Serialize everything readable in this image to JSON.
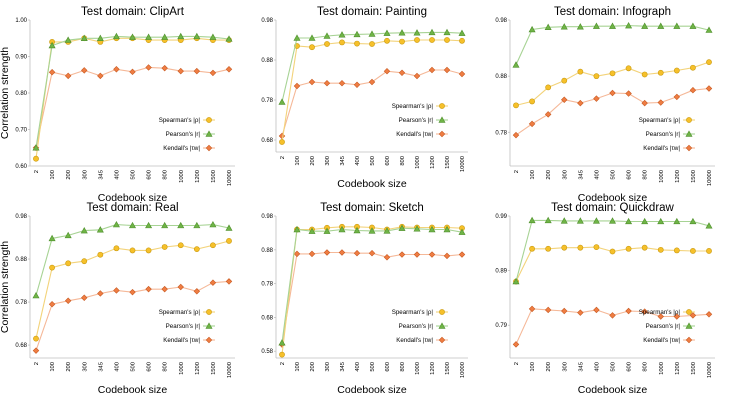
{
  "figure": {
    "shared_ylabel": "Correlation strength",
    "shared_xlabel": "Codebook size"
  },
  "colors": {
    "spearman_line": "#f3d37a",
    "spearman_marker_fill": "#f6c02a",
    "spearman_marker_edge": "#c99a10",
    "pearson_line": "#a7d394",
    "pearson_marker_fill": "#6fb446",
    "pearson_marker_edge": "#4f8f2c",
    "kendall_line": "#f5b898",
    "kendall_marker_fill": "#ef7d43",
    "kendall_marker_edge": "#c85a22",
    "axis": "#bfbfbf",
    "text": "#000000"
  },
  "chart_data": [
    {
      "type": "line",
      "title": "Test domain: ClipArt",
      "xlabel": "Codebook size",
      "ylabel": "Correlation strength",
      "categories": [
        "2",
        "100",
        "200",
        "300",
        "345",
        "400",
        "500",
        "600",
        "800",
        "1000",
        "1200",
        "1500",
        "10000"
      ],
      "yticks": [
        "0.60",
        "0.70",
        "0.80",
        "0.90",
        "1.00"
      ],
      "ylim": [
        0.6,
        1.0
      ],
      "legend_position": "bottom-right",
      "series": [
        {
          "name": "Spearman's |ρ|",
          "key": "spearman",
          "values": [
            0.62,
            0.94,
            0.94,
            0.95,
            0.94,
            0.95,
            0.95,
            0.945,
            0.945,
            0.945,
            0.95,
            0.945,
            0.945
          ]
        },
        {
          "name": "Pearson's |r|",
          "key": "pearson",
          "values": [
            0.65,
            0.93,
            0.945,
            0.95,
            0.95,
            0.955,
            0.953,
            0.953,
            0.953,
            0.955,
            0.955,
            0.953,
            0.948
          ]
        },
        {
          "name": "Kendall's |τw|",
          "key": "kendall",
          "values": [
            0.65,
            0.857,
            0.847,
            0.862,
            0.847,
            0.865,
            0.858,
            0.87,
            0.868,
            0.86,
            0.86,
            0.855,
            0.865
          ]
        }
      ]
    },
    {
      "type": "line",
      "title": "Test domain: Painting",
      "xlabel": "Codebook size",
      "ylabel": "",
      "categories": [
        "2",
        "100",
        "200",
        "300",
        "345",
        "400",
        "500",
        "600",
        "800",
        "1000",
        "1200",
        "1500",
        "10000"
      ],
      "yticks": [
        "0.68",
        "0.78",
        "0.88",
        "0.98"
      ],
      "ylim": [
        0.65,
        0.98
      ],
      "legend_position": "bottom-right",
      "series": [
        {
          "name": "Spearman's |ρ|",
          "key": "spearman",
          "values": [
            0.675,
            0.915,
            0.912,
            0.92,
            0.924,
            0.921,
            0.92,
            0.928,
            0.926,
            0.93,
            0.93,
            0.93,
            0.928
          ]
        },
        {
          "name": "Pearson's |r|",
          "key": "pearson",
          "values": [
            0.775,
            0.935,
            0.935,
            0.94,
            0.943,
            0.944,
            0.945,
            0.947,
            0.948,
            0.948,
            0.949,
            0.949,
            0.947
          ]
        },
        {
          "name": "Kendall's |τw|",
          "key": "kendall",
          "values": [
            0.69,
            0.815,
            0.825,
            0.822,
            0.822,
            0.818,
            0.825,
            0.852,
            0.848,
            0.84,
            0.855,
            0.855,
            0.845
          ]
        }
      ]
    },
    {
      "type": "line",
      "title": "Test domain: Infograph",
      "xlabel": "Codebook size",
      "ylabel": "",
      "categories": [
        "2",
        "100",
        "200",
        "300",
        "345",
        "400",
        "500",
        "600",
        "800",
        "1000",
        "1200",
        "1500",
        "10000"
      ],
      "yticks": [
        "0.78",
        "0.88",
        "0.98"
      ],
      "ylim": [
        0.72,
        0.98
      ],
      "legend_position": "bottom-right",
      "series": [
        {
          "name": "Spearman's |ρ|",
          "key": "spearman",
          "values": [
            0.828,
            0.835,
            0.86,
            0.872,
            0.888,
            0.88,
            0.885,
            0.894,
            0.883,
            0.886,
            0.89,
            0.895,
            0.905
          ]
        },
        {
          "name": "Pearson's |r|",
          "key": "pearson",
          "values": [
            0.9,
            0.963,
            0.967,
            0.968,
            0.968,
            0.969,
            0.969,
            0.97,
            0.969,
            0.969,
            0.969,
            0.969,
            0.962
          ]
        },
        {
          "name": "Kendall's |τw|",
          "key": "kendall",
          "values": [
            0.775,
            0.795,
            0.812,
            0.838,
            0.832,
            0.84,
            0.85,
            0.849,
            0.832,
            0.833,
            0.843,
            0.855,
            0.858
          ]
        }
      ]
    },
    {
      "type": "line",
      "title": "Test domain: Real",
      "xlabel": "Codebook size",
      "ylabel": "Correlation strength",
      "categories": [
        "2",
        "100",
        "200",
        "300",
        "345",
        "400",
        "500",
        "600",
        "800",
        "1000",
        "1200",
        "1500",
        "10000"
      ],
      "yticks": [
        "0.68",
        "0.78",
        "0.88",
        "0.98"
      ],
      "ylim": [
        0.65,
        0.98
      ],
      "legend_position": "bottom-right",
      "series": [
        {
          "name": "Spearman's |ρ|",
          "key": "spearman",
          "values": [
            0.695,
            0.86,
            0.87,
            0.875,
            0.89,
            0.905,
            0.9,
            0.9,
            0.908,
            0.912,
            0.903,
            0.912,
            0.922
          ]
        },
        {
          "name": "Pearson's |r|",
          "key": "pearson",
          "values": [
            0.795,
            0.928,
            0.935,
            0.946,
            0.948,
            0.96,
            0.958,
            0.958,
            0.958,
            0.958,
            0.958,
            0.96,
            0.952
          ]
        },
        {
          "name": "Kendall's |τw|",
          "key": "kendall",
          "values": [
            0.667,
            0.775,
            0.783,
            0.79,
            0.8,
            0.807,
            0.803,
            0.81,
            0.81,
            0.815,
            0.805,
            0.825,
            0.828
          ]
        }
      ]
    },
    {
      "type": "line",
      "title": "Test domain: Sketch",
      "xlabel": "Codebook size",
      "ylabel": "",
      "categories": [
        "2",
        "100",
        "200",
        "300",
        "345",
        "400",
        "500",
        "600",
        "800",
        "1000",
        "1200",
        "1500",
        "10000"
      ],
      "yticks": [
        "0.58",
        "0.68",
        "0.78",
        "0.88",
        "0.98"
      ],
      "ylim": [
        0.56,
        0.98
      ],
      "legend_position": "bottom-right",
      "series": [
        {
          "name": "Spearman's |ρ|",
          "key": "spearman",
          "values": [
            0.57,
            0.94,
            0.94,
            0.945,
            0.948,
            0.948,
            0.946,
            0.94,
            0.948,
            0.946,
            0.946,
            0.946,
            0.944
          ]
        },
        {
          "name": "Pearson's |r|",
          "key": "pearson",
          "values": [
            0.605,
            0.94,
            0.935,
            0.935,
            0.94,
            0.937,
            0.936,
            0.936,
            0.944,
            0.942,
            0.94,
            0.94,
            0.932
          ]
        },
        {
          "name": "Kendall's |τw|",
          "key": "kendall",
          "values": [
            0.6,
            0.868,
            0.868,
            0.872,
            0.872,
            0.87,
            0.87,
            0.858,
            0.866,
            0.866,
            0.866,
            0.862,
            0.866
          ]
        }
      ]
    },
    {
      "type": "line",
      "title": "Test domain: Quickdraw",
      "xlabel": "Codebook size",
      "ylabel": "",
      "categories": [
        "2",
        "100",
        "200",
        "300",
        "345",
        "400",
        "500",
        "600",
        "800",
        "1000",
        "1200",
        "1500",
        "10000"
      ],
      "yticks": [
        "0.79",
        "0.89",
        "0.99"
      ],
      "ylim": [
        0.73,
        0.99
      ],
      "legend_position": "bottom-right",
      "series": [
        {
          "name": "Spearman's |ρ|",
          "key": "spearman",
          "values": [
            0.87,
            0.93,
            0.93,
            0.932,
            0.932,
            0.933,
            0.925,
            0.93,
            0.932,
            0.928,
            0.927,
            0.926,
            0.926
          ]
        },
        {
          "name": "Pearson's |r|",
          "key": "pearson",
          "values": [
            0.87,
            0.982,
            0.982,
            0.981,
            0.981,
            0.981,
            0.981,
            0.98,
            0.98,
            0.98,
            0.98,
            0.98,
            0.972
          ]
        },
        {
          "name": "Kendall's |τw|",
          "key": "kendall",
          "values": [
            0.755,
            0.82,
            0.818,
            0.816,
            0.813,
            0.818,
            0.808,
            0.816,
            0.815,
            0.806,
            0.806,
            0.808,
            0.81
          ]
        }
      ]
    }
  ]
}
